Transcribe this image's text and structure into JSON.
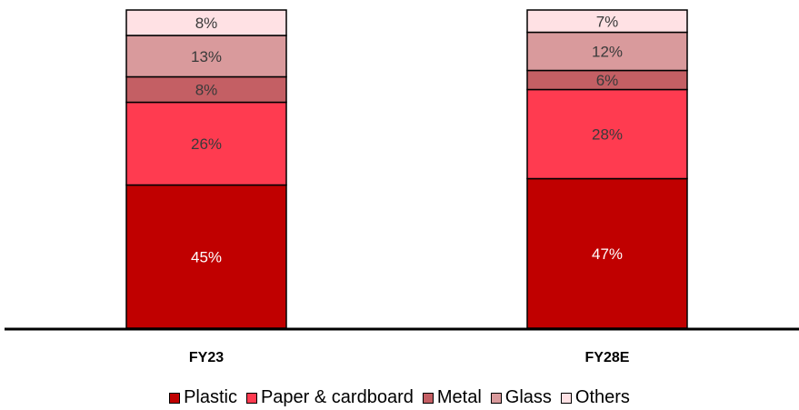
{
  "chart_data": {
    "type": "bar",
    "stacked": true,
    "percent": true,
    "categories": [
      "FY23",
      "FY28E"
    ],
    "series": [
      {
        "name": "Plastic",
        "values": [
          45,
          47
        ],
        "color": "#C00000",
        "label_color": "#FFFFFF"
      },
      {
        "name": "Paper & cardboard",
        "values": [
          26,
          28
        ],
        "color": "#FF3B50",
        "label_color": "#3A3A3A"
      },
      {
        "name": "Metal",
        "values": [
          8,
          6
        ],
        "color": "#C45F64",
        "label_color": "#3A3A3A"
      },
      {
        "name": "Glass",
        "values": [
          13,
          12
        ],
        "color": "#D99A9C",
        "label_color": "#3A3A3A"
      },
      {
        "name": "Others",
        "values": [
          8,
          7
        ],
        "color": "#FFE1E4",
        "label_color": "#3A3A3A"
      }
    ],
    "legend": "bottom",
    "grid": false,
    "ylim": [
      0,
      100
    ]
  }
}
